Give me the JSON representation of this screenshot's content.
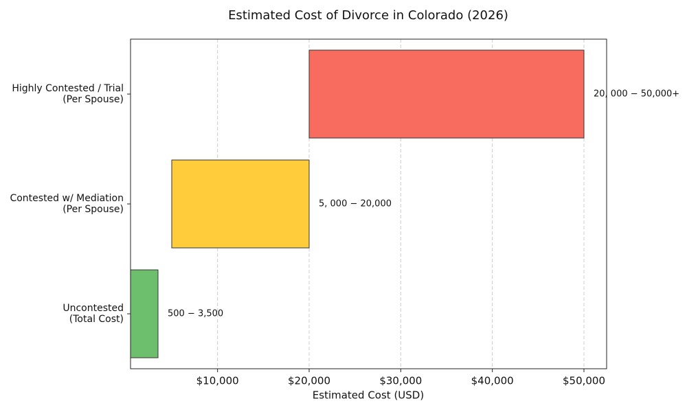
{
  "chart_data": {
    "type": "range-bar",
    "title": "Estimated Cost of Divorce in Colorado (2026)",
    "x_label": "Estimated Cost (USD)",
    "categories": [
      "Uncontested\n(Total Cost)",
      "Contested w/ Mediation\n(Per Spouse)",
      "Highly Contested / Trial\n(Per Spouse)"
    ],
    "starts": [
      500,
      5000,
      20000
    ],
    "ends": [
      3500,
      20000,
      50000
    ],
    "value_labels": [
      "500 − 3,500",
      "5, 000 − 20,000",
      "20, 000 − 50,000+"
    ],
    "colors": [
      "#6dbf6d",
      "#ffcd3c",
      "#f76c5e"
    ],
    "xlim": [
      500,
      52475
    ],
    "xticks": [
      {
        "value": 10000,
        "label": "$10,000"
      },
      {
        "value": 20000,
        "label": "$20,000"
      },
      {
        "value": 30000,
        "label": "$30,000"
      },
      {
        "value": 40000,
        "label": "$40,000"
      },
      {
        "value": 50000,
        "label": "$50,000"
      }
    ],
    "grid": true
  }
}
